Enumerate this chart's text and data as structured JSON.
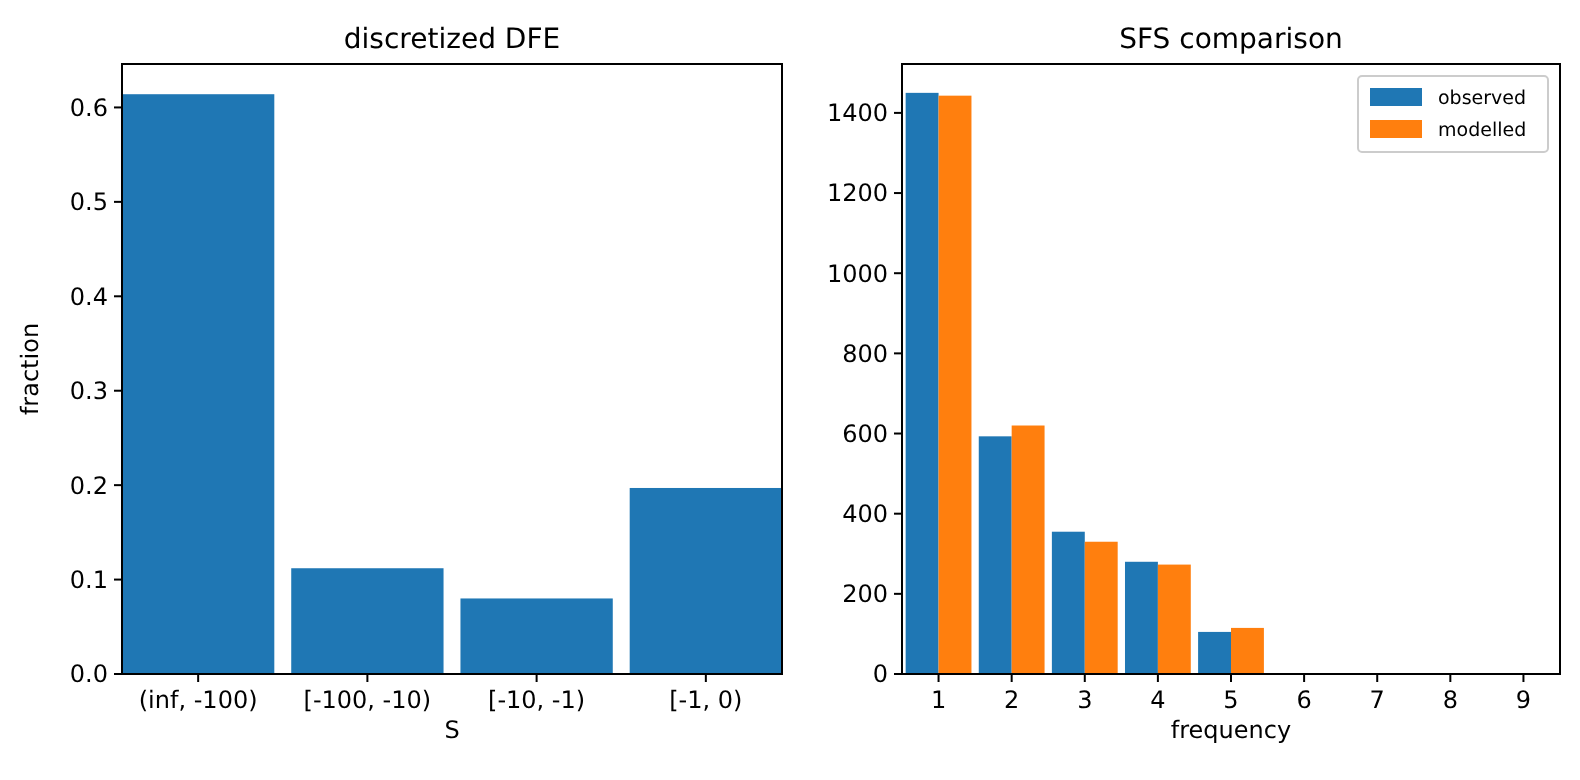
{
  "chart_data": [
    {
      "type": "bar",
      "title": "discretized DFE",
      "xlabel": "S",
      "ylabel": "fraction",
      "categories": [
        "(inf, -100)",
        "[-100, -10)",
        "[-10, -1)",
        "[-1, 0)"
      ],
      "values": [
        0.614,
        0.112,
        0.08,
        0.197
      ],
      "color": "#1f77b4",
      "ylim": [
        0,
        0.646
      ],
      "yticks": [
        {
          "value": 0,
          "label": "0.0"
        },
        0.1,
        0.2,
        0.3,
        0.4,
        0.5,
        0.6
      ],
      "legend": false,
      "grid": false
    },
    {
      "type": "bar",
      "title": "SFS comparison",
      "xlabel": "frequency",
      "categories": [
        "1",
        "2",
        "3",
        "4",
        "5",
        "6",
        "7",
        "8",
        "9"
      ],
      "series": [
        {
          "name": "observed",
          "color": "#1f77b4",
          "values": [
            1450,
            593,
            355,
            280,
            105,
            0,
            0,
            0,
            0
          ]
        },
        {
          "name": "modelled",
          "color": "#ff7f0e",
          "values": [
            1443,
            620,
            330,
            273,
            115,
            0,
            0,
            0,
            0
          ]
        }
      ],
      "ylim": [
        0,
        1522
      ],
      "yticks": [
        0,
        200,
        400,
        600,
        800,
        1000,
        1200,
        1400
      ],
      "legend": "top right",
      "grid": false
    }
  ]
}
